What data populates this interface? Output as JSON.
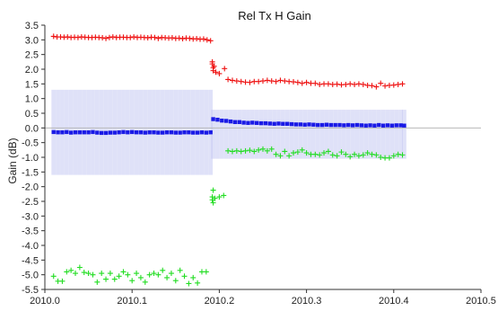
{
  "chart_data": {
    "type": "scatter",
    "title": "Rel Tx H Gain",
    "xlabel": "",
    "ylabel": "Gain (dB)",
    "xlim": [
      2010.0,
      2010.5
    ],
    "ylim": [
      -5.5,
      3.5
    ],
    "x_ticks": [
      "2010.0",
      "2010.1",
      "2010.2",
      "2010.3",
      "2010.4",
      "2010.5"
    ],
    "y_ticks": [
      "3.5",
      "3.0",
      "2.5",
      "2.0",
      "1.5",
      "1.0",
      "0.5",
      "0.0",
      "-0.5",
      "-1.0",
      "-1.5",
      "-2.0",
      "-2.5",
      "-3.0",
      "-3.5",
      "-4.0",
      "-4.5",
      "-5.0",
      "-5.5"
    ],
    "zero_line": true,
    "grid": false,
    "series": [
      {
        "marker": "+",
        "color": "#ee1111",
        "points": [
          [
            2010.01,
            3.12
          ],
          [
            2010.014,
            3.1
          ],
          [
            2010.018,
            3.1
          ],
          [
            2010.022,
            3.09
          ],
          [
            2010.026,
            3.1
          ],
          [
            2010.03,
            3.08
          ],
          [
            2010.034,
            3.09
          ],
          [
            2010.038,
            3.08
          ],
          [
            2010.042,
            3.1
          ],
          [
            2010.046,
            3.09
          ],
          [
            2010.05,
            3.08
          ],
          [
            2010.054,
            3.08
          ],
          [
            2010.058,
            3.09
          ],
          [
            2010.062,
            3.08
          ],
          [
            2010.066,
            3.07
          ],
          [
            2010.07,
            3.05
          ],
          [
            2010.074,
            3.08
          ],
          [
            2010.078,
            3.1
          ],
          [
            2010.082,
            3.08
          ],
          [
            2010.086,
            3.09
          ],
          [
            2010.09,
            3.09
          ],
          [
            2010.094,
            3.08
          ],
          [
            2010.098,
            3.08
          ],
          [
            2010.102,
            3.1
          ],
          [
            2010.106,
            3.08
          ],
          [
            2010.11,
            3.09
          ],
          [
            2010.114,
            3.08
          ],
          [
            2010.118,
            3.07
          ],
          [
            2010.122,
            3.09
          ],
          [
            2010.126,
            3.08
          ],
          [
            2010.13,
            3.05
          ],
          [
            2010.134,
            3.08
          ],
          [
            2010.138,
            3.07
          ],
          [
            2010.142,
            3.06
          ],
          [
            2010.146,
            3.07
          ],
          [
            2010.15,
            3.05
          ],
          [
            2010.154,
            3.06
          ],
          [
            2010.158,
            3.04
          ],
          [
            2010.162,
            3.06
          ],
          [
            2010.166,
            3.05
          ],
          [
            2010.17,
            3.03
          ],
          [
            2010.174,
            3.04
          ],
          [
            2010.178,
            3.02
          ],
          [
            2010.182,
            3.03
          ],
          [
            2010.186,
            3.0
          ],
          [
            2010.19,
            2.97
          ],
          [
            2010.192,
            2.25
          ],
          [
            2010.192,
            2.18
          ],
          [
            2010.193,
            2.05
          ],
          [
            2010.193,
            1.95
          ],
          [
            2010.194,
            2.1
          ],
          [
            2010.196,
            1.9
          ],
          [
            2010.2,
            1.85
          ],
          [
            2010.206,
            2.02
          ],
          [
            2010.21,
            1.65
          ],
          [
            2010.215,
            1.62
          ],
          [
            2010.22,
            1.6
          ],
          [
            2010.225,
            1.58
          ],
          [
            2010.23,
            1.56
          ],
          [
            2010.235,
            1.55
          ],
          [
            2010.24,
            1.58
          ],
          [
            2010.245,
            1.58
          ],
          [
            2010.25,
            1.6
          ],
          [
            2010.255,
            1.62
          ],
          [
            2010.26,
            1.6
          ],
          [
            2010.265,
            1.58
          ],
          [
            2010.27,
            1.62
          ],
          [
            2010.275,
            1.6
          ],
          [
            2010.28,
            1.58
          ],
          [
            2010.285,
            1.57
          ],
          [
            2010.29,
            1.55
          ],
          [
            2010.295,
            1.52
          ],
          [
            2010.3,
            1.55
          ],
          [
            2010.305,
            1.52
          ],
          [
            2010.31,
            1.52
          ],
          [
            2010.315,
            1.48
          ],
          [
            2010.32,
            1.5
          ],
          [
            2010.325,
            1.5
          ],
          [
            2010.33,
            1.48
          ],
          [
            2010.335,
            1.49
          ],
          [
            2010.34,
            1.47
          ],
          [
            2010.345,
            1.48
          ],
          [
            2010.35,
            1.5
          ],
          [
            2010.355,
            1.48
          ],
          [
            2010.36,
            1.5
          ],
          [
            2010.365,
            1.48
          ],
          [
            2010.37,
            1.45
          ],
          [
            2010.375,
            1.44
          ],
          [
            2010.38,
            1.4
          ],
          [
            2010.385,
            1.52
          ],
          [
            2010.39,
            1.43
          ],
          [
            2010.395,
            1.45
          ],
          [
            2010.4,
            1.46
          ],
          [
            2010.405,
            1.48
          ],
          [
            2010.41,
            1.5
          ]
        ]
      },
      {
        "marker": "square",
        "color": "#1a1ae6",
        "points": [
          [
            2010.01,
            -0.14
          ],
          [
            2010.015,
            -0.15
          ],
          [
            2010.02,
            -0.15
          ],
          [
            2010.025,
            -0.14
          ],
          [
            2010.03,
            -0.16
          ],
          [
            2010.035,
            -0.15
          ],
          [
            2010.04,
            -0.15
          ],
          [
            2010.045,
            -0.15
          ],
          [
            2010.05,
            -0.15
          ],
          [
            2010.055,
            -0.14
          ],
          [
            2010.06,
            -0.16
          ],
          [
            2010.065,
            -0.17
          ],
          [
            2010.07,
            -0.17
          ],
          [
            2010.075,
            -0.16
          ],
          [
            2010.08,
            -0.16
          ],
          [
            2010.085,
            -0.15
          ],
          [
            2010.09,
            -0.14
          ],
          [
            2010.095,
            -0.15
          ],
          [
            2010.1,
            -0.14
          ],
          [
            2010.105,
            -0.15
          ],
          [
            2010.11,
            -0.15
          ],
          [
            2010.115,
            -0.16
          ],
          [
            2010.12,
            -0.15
          ],
          [
            2010.125,
            -0.15
          ],
          [
            2010.13,
            -0.16
          ],
          [
            2010.135,
            -0.16
          ],
          [
            2010.14,
            -0.15
          ],
          [
            2010.145,
            -0.15
          ],
          [
            2010.15,
            -0.16
          ],
          [
            2010.155,
            -0.16
          ],
          [
            2010.16,
            -0.15
          ],
          [
            2010.165,
            -0.15
          ],
          [
            2010.17,
            -0.16
          ],
          [
            2010.175,
            -0.16
          ],
          [
            2010.18,
            -0.15
          ],
          [
            2010.185,
            -0.16
          ],
          [
            2010.19,
            -0.15
          ],
          [
            2010.193,
            0.3
          ],
          [
            2010.198,
            0.28
          ],
          [
            2010.203,
            0.25
          ],
          [
            2010.208,
            0.24
          ],
          [
            2010.213,
            0.22
          ],
          [
            2010.218,
            0.2
          ],
          [
            2010.223,
            0.2
          ],
          [
            2010.228,
            0.18
          ],
          [
            2010.233,
            0.17
          ],
          [
            2010.238,
            0.18
          ],
          [
            2010.243,
            0.17
          ],
          [
            2010.248,
            0.16
          ],
          [
            2010.253,
            0.16
          ],
          [
            2010.258,
            0.15
          ],
          [
            2010.263,
            0.14
          ],
          [
            2010.268,
            0.15
          ],
          [
            2010.273,
            0.14
          ],
          [
            2010.278,
            0.14
          ],
          [
            2010.283,
            0.13
          ],
          [
            2010.288,
            0.12
          ],
          [
            2010.293,
            0.12
          ],
          [
            2010.298,
            0.11
          ],
          [
            2010.303,
            0.12
          ],
          [
            2010.308,
            0.11
          ],
          [
            2010.313,
            0.1
          ],
          [
            2010.318,
            0.1
          ],
          [
            2010.323,
            0.11
          ],
          [
            2010.328,
            0.1
          ],
          [
            2010.333,
            0.1
          ],
          [
            2010.338,
            0.1
          ],
          [
            2010.343,
            0.09
          ],
          [
            2010.348,
            0.1
          ],
          [
            2010.353,
            0.09
          ],
          [
            2010.358,
            0.1
          ],
          [
            2010.363,
            0.09
          ],
          [
            2010.368,
            0.08
          ],
          [
            2010.373,
            0.09
          ],
          [
            2010.378,
            0.08
          ],
          [
            2010.383,
            0.1
          ],
          [
            2010.388,
            0.08
          ],
          [
            2010.393,
            0.09
          ],
          [
            2010.398,
            0.08
          ],
          [
            2010.403,
            0.09
          ],
          [
            2010.408,
            0.09
          ],
          [
            2010.412,
            0.08
          ]
        ],
        "error_band": [
          {
            "x_from": 2010.01,
            "x_to": 2010.19,
            "low": -1.6,
            "high": 1.3
          },
          {
            "x_from": 2010.193,
            "x_to": 2010.412,
            "low": -1.05,
            "high": 0.62
          }
        ]
      },
      {
        "marker": "+",
        "color": "#22dd22",
        "points": [
          [
            2010.01,
            -5.05
          ],
          [
            2010.015,
            -5.22
          ],
          [
            2010.02,
            -5.22
          ],
          [
            2010.025,
            -4.9
          ],
          [
            2010.03,
            -4.85
          ],
          [
            2010.035,
            -4.95
          ],
          [
            2010.04,
            -4.75
          ],
          [
            2010.045,
            -4.92
          ],
          [
            2010.05,
            -4.95
          ],
          [
            2010.055,
            -5.0
          ],
          [
            2010.06,
            -5.25
          ],
          [
            2010.065,
            -4.95
          ],
          [
            2010.07,
            -5.15
          ],
          [
            2010.075,
            -4.95
          ],
          [
            2010.08,
            -5.15
          ],
          [
            2010.085,
            -5.05
          ],
          [
            2010.09,
            -4.9
          ],
          [
            2010.095,
            -5.0
          ],
          [
            2010.1,
            -5.2
          ],
          [
            2010.105,
            -4.95
          ],
          [
            2010.11,
            -5.1
          ],
          [
            2010.115,
            -5.25
          ],
          [
            2010.12,
            -5.0
          ],
          [
            2010.125,
            -4.95
          ],
          [
            2010.13,
            -5.0
          ],
          [
            2010.135,
            -4.85
          ],
          [
            2010.14,
            -5.1
          ],
          [
            2010.145,
            -4.95
          ],
          [
            2010.15,
            -5.2
          ],
          [
            2010.155,
            -4.85
          ],
          [
            2010.16,
            -5.05
          ],
          [
            2010.165,
            -5.3
          ],
          [
            2010.17,
            -5.1
          ],
          [
            2010.175,
            -5.28
          ],
          [
            2010.18,
            -4.9
          ],
          [
            2010.185,
            -4.9
          ],
          [
            2010.192,
            -2.35
          ],
          [
            2010.192,
            -2.45
          ],
          [
            2010.193,
            -2.55
          ],
          [
            2010.193,
            -2.12
          ],
          [
            2010.195,
            -2.4
          ],
          [
            2010.2,
            -2.35
          ],
          [
            2010.205,
            -2.3
          ],
          [
            2010.21,
            -0.78
          ],
          [
            2010.215,
            -0.8
          ],
          [
            2010.22,
            -0.78
          ],
          [
            2010.225,
            -0.8
          ],
          [
            2010.23,
            -0.78
          ],
          [
            2010.235,
            -0.76
          ],
          [
            2010.24,
            -0.8
          ],
          [
            2010.245,
            -0.75
          ],
          [
            2010.25,
            -0.72
          ],
          [
            2010.255,
            -0.78
          ],
          [
            2010.26,
            -0.72
          ],
          [
            2010.265,
            -0.9
          ],
          [
            2010.27,
            -0.95
          ],
          [
            2010.275,
            -0.8
          ],
          [
            2010.28,
            -0.95
          ],
          [
            2010.285,
            -0.85
          ],
          [
            2010.29,
            -0.82
          ],
          [
            2010.295,
            -0.75
          ],
          [
            2010.3,
            -0.85
          ],
          [
            2010.305,
            -0.9
          ],
          [
            2010.31,
            -0.9
          ],
          [
            2010.315,
            -0.92
          ],
          [
            2010.32,
            -0.85
          ],
          [
            2010.325,
            -0.8
          ],
          [
            2010.33,
            -0.92
          ],
          [
            2010.335,
            -0.95
          ],
          [
            2010.34,
            -0.82
          ],
          [
            2010.345,
            -0.9
          ],
          [
            2010.35,
            -0.98
          ],
          [
            2010.355,
            -0.9
          ],
          [
            2010.36,
            -0.95
          ],
          [
            2010.365,
            -0.92
          ],
          [
            2010.37,
            -0.85
          ],
          [
            2010.375,
            -0.9
          ],
          [
            2010.38,
            -0.92
          ],
          [
            2010.385,
            -1.0
          ],
          [
            2010.39,
            -1.02
          ],
          [
            2010.395,
            -1.02
          ],
          [
            2010.4,
            -0.95
          ],
          [
            2010.405,
            -0.9
          ],
          [
            2010.41,
            -0.92
          ]
        ]
      }
    ]
  }
}
